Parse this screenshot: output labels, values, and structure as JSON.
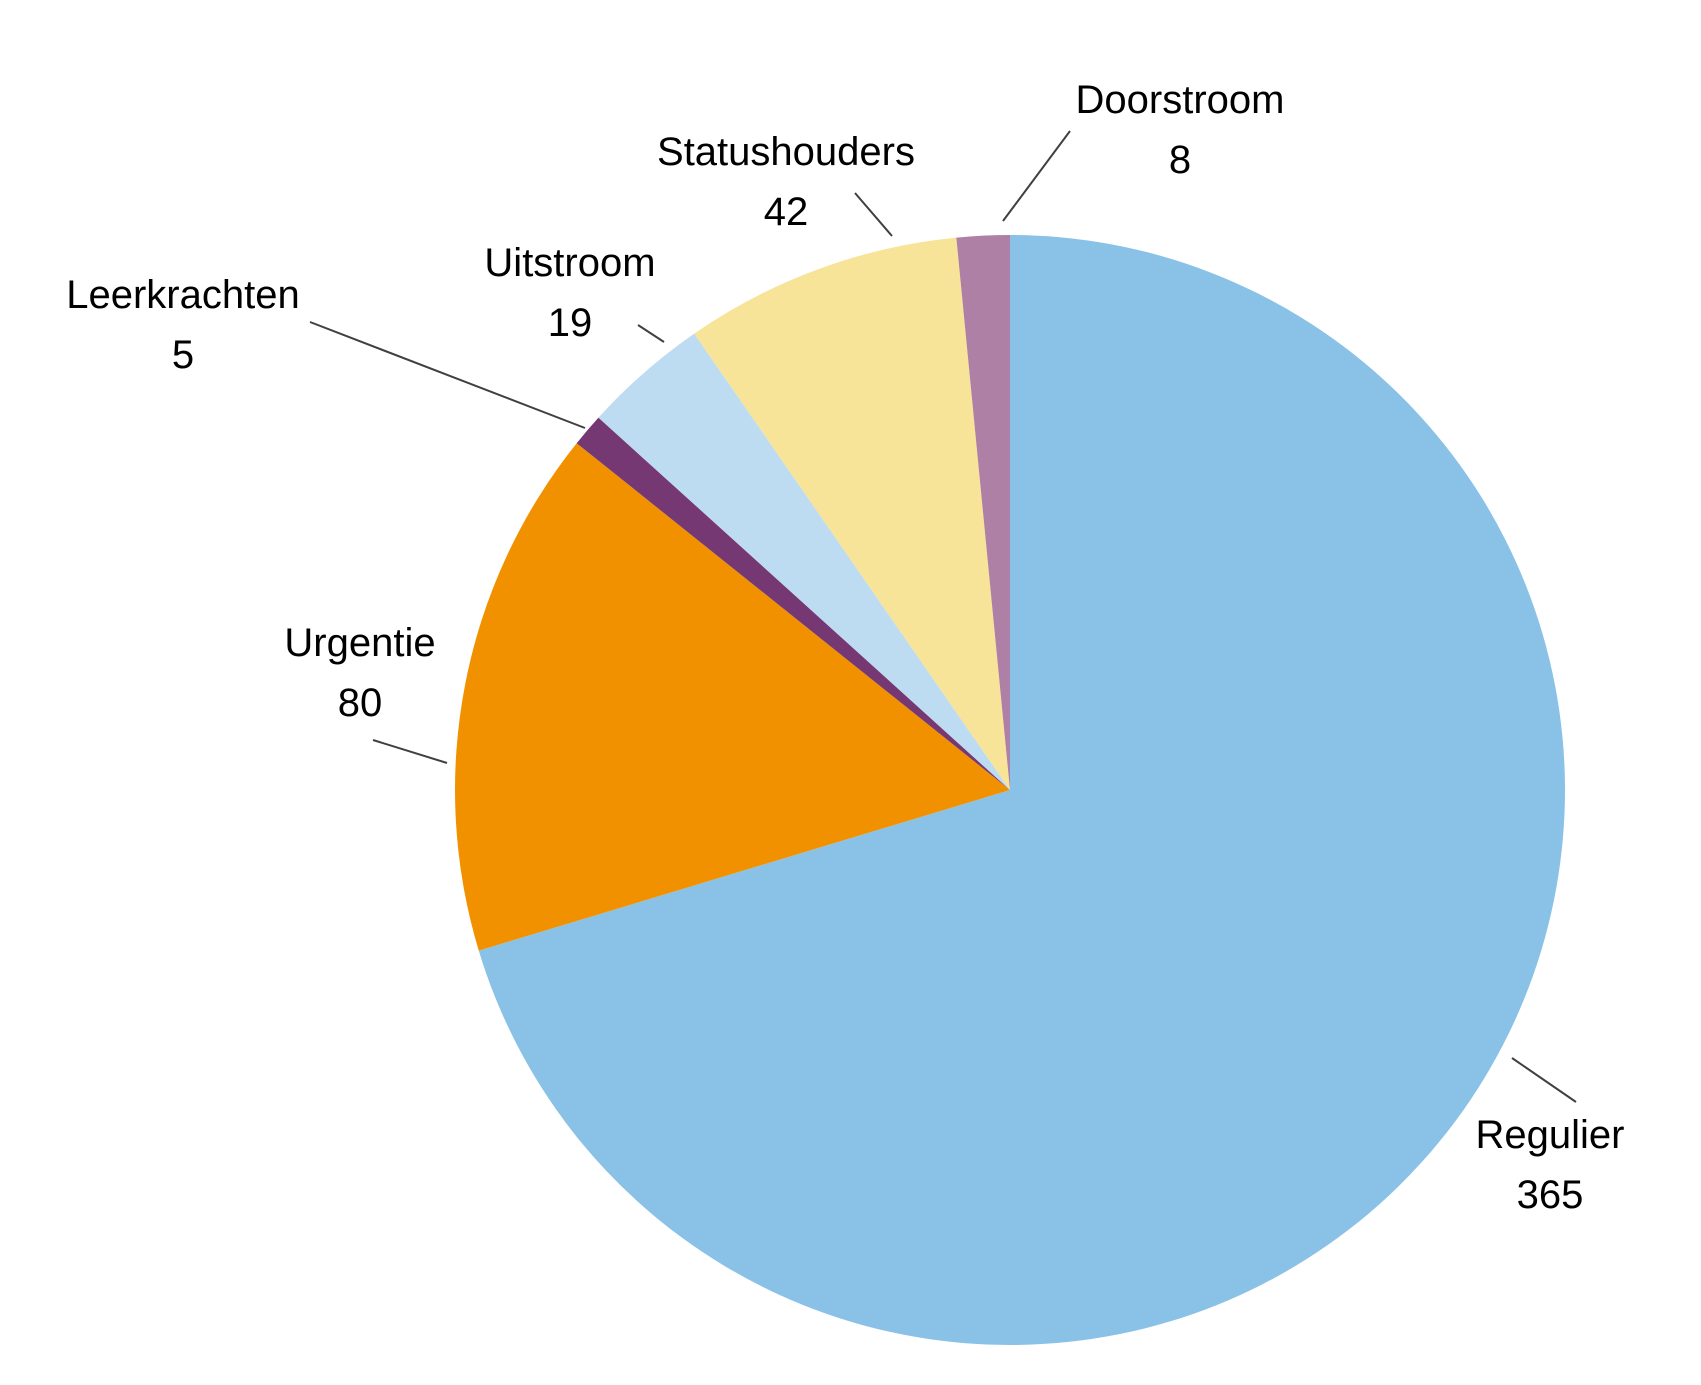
{
  "chart_data": {
    "type": "pie",
    "start_angle": "12 o'clock",
    "direction": "clockwise",
    "slices": [
      {
        "label": "Regulier",
        "value": 365,
        "value_label": "365",
        "color": "#89C2E6"
      },
      {
        "label": "Urgentie",
        "value": 80,
        "value_label": "80",
        "color": "#F19100"
      },
      {
        "label": "Leerkrachten",
        "value": 5,
        "value_label": "5",
        "color": "#763873"
      },
      {
        "label": "Uitstroom",
        "value": 19,
        "value_label": "19",
        "color": "#BEDCF1"
      },
      {
        "label": "Statushouders",
        "value": 42,
        "value_label": "42",
        "color": "#F7E498"
      },
      {
        "label": "Doorstroom",
        "value": 8,
        "value_label": "8",
        "color": "#AE80A6"
      }
    ],
    "legend": "none"
  }
}
